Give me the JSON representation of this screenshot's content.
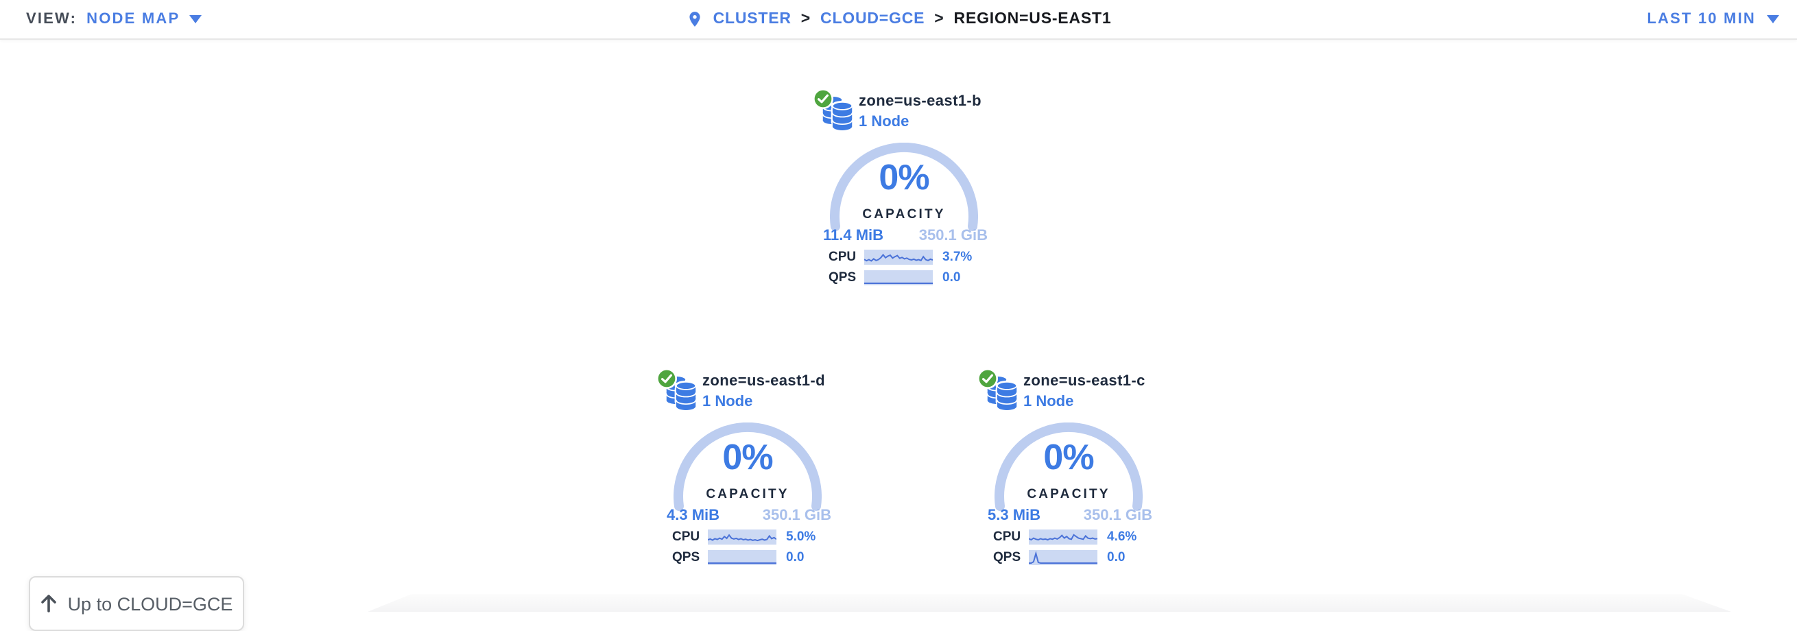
{
  "header": {
    "view_label": "VIEW:",
    "view_value": "NODE MAP",
    "crumbs": [
      {
        "label": "CLUSTER"
      },
      {
        "label": "CLOUD=GCE"
      },
      {
        "label": "REGION=US-EAST1"
      }
    ],
    "crumb_separator": ">",
    "time_range": "LAST 10 MIN"
  },
  "colors": {
    "link": "#4a7de2",
    "accent": "#3d7be3",
    "light": "#a9c0ec",
    "arc": "#bccdf0",
    "green": "#4fa53f",
    "dark": "#1e2a3d",
    "sparkbg": "#ccd9f3",
    "sparkline": "#4a72d8"
  },
  "zones": [
    {
      "name": "zone=us-east1-b",
      "nodes": "1 Node",
      "capacity_pct": "0%",
      "capacity_label": "CAPACITY",
      "capacity_used": "11.4 MiB",
      "capacity_total": "350.1 GiB",
      "cpu_label": "CPU",
      "cpu_value": "3.7%",
      "qps_label": "QPS",
      "qps_value": "0.0",
      "cpu_spark": [
        0.3,
        0.18,
        0.28,
        0.16,
        0.35,
        0.2,
        0.28,
        0.45,
        0.72,
        0.45,
        0.6,
        0.68,
        0.42,
        0.55,
        0.65,
        0.4,
        0.48,
        0.35,
        0.42,
        0.3,
        0.25,
        0.32,
        0.22,
        0.28,
        0.2,
        0.55,
        0.28,
        0.2,
        0.32,
        0.25
      ],
      "qps_spark": [
        0,
        0,
        0,
        0,
        0,
        0,
        0,
        0,
        0,
        0,
        0,
        0,
        0,
        0,
        0,
        0,
        0,
        0,
        0,
        0,
        0,
        0,
        0,
        0,
        0,
        0,
        0,
        0,
        0,
        0
      ]
    },
    {
      "name": "zone=us-east1-d",
      "nodes": "1 Node",
      "capacity_pct": "0%",
      "capacity_label": "CAPACITY",
      "capacity_used": "4.3 MiB",
      "capacity_total": "350.1 GiB",
      "cpu_label": "CPU",
      "cpu_value": "5.0%",
      "qps_label": "QPS",
      "qps_value": "0.0",
      "cpu_spark": [
        0.25,
        0.32,
        0.22,
        0.35,
        0.28,
        0.4,
        0.3,
        0.55,
        0.38,
        0.68,
        0.4,
        0.32,
        0.38,
        0.28,
        0.35,
        0.25,
        0.3,
        0.22,
        0.28,
        0.2,
        0.25,
        0.18,
        0.25,
        0.3,
        0.22,
        0.28,
        0.6,
        0.35,
        0.45,
        0.3
      ],
      "qps_spark": [
        0,
        0,
        0,
        0,
        0,
        0,
        0,
        0,
        0,
        0,
        0,
        0,
        0,
        0,
        0,
        0,
        0,
        0,
        0,
        0,
        0,
        0,
        0,
        0,
        0,
        0,
        0,
        0,
        0,
        0
      ]
    },
    {
      "name": "zone=us-east1-c",
      "nodes": "1 Node",
      "capacity_pct": "0%",
      "capacity_label": "CAPACITY",
      "capacity_used": "5.3 MiB",
      "capacity_total": "350.1 GiB",
      "cpu_label": "CPU",
      "cpu_value": "4.6%",
      "qps_label": "QPS",
      "qps_value": "0.0",
      "cpu_spark": [
        0.35,
        0.25,
        0.4,
        0.3,
        0.25,
        0.35,
        0.28,
        0.32,
        0.25,
        0.35,
        0.3,
        0.4,
        0.32,
        0.45,
        0.65,
        0.4,
        0.55,
        0.35,
        0.3,
        0.7,
        0.55,
        0.4,
        0.35,
        0.3,
        0.6,
        0.4,
        0.35,
        0.4,
        0.32,
        0.35
      ],
      "qps_spark": [
        0,
        0,
        0.12,
        0.88,
        0.06,
        0,
        0,
        0,
        0,
        0,
        0,
        0,
        0,
        0,
        0,
        0,
        0,
        0,
        0,
        0,
        0,
        0,
        0,
        0,
        0,
        0,
        0,
        0,
        0,
        0
      ]
    }
  ],
  "up_button": {
    "icon": "up-arrow",
    "label": "Up to CLOUD=GCE"
  }
}
